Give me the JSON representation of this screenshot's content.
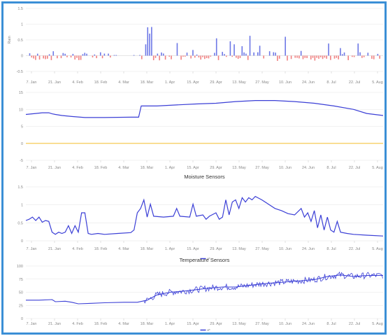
{
  "chart_data": [
    {
      "type": "bar",
      "title": "",
      "ylabel": "Rain",
      "ylim": [
        -0.5,
        1.5
      ],
      "yticks": [
        "1.5",
        "1",
        "0.5",
        "0",
        "-0.5"
      ],
      "xticks": [
        "7. Jan",
        "21. Jan",
        "4. Feb",
        "18. Feb",
        "4. Mar",
        "18. Mar",
        "1. Apr",
        "15. Apr",
        "29. Apr",
        "13. May",
        "27. May",
        "10. Jun",
        "24. Jun",
        "8. Jul",
        "22. Jul",
        "5. Aug"
      ],
      "colors": {
        "positive": "#6d78e6",
        "negative": "#f08080"
      }
    },
    {
      "type": "line",
      "title": "",
      "ylim": [
        -5,
        15
      ],
      "yticks": [
        "15",
        "10",
        "5",
        "0",
        "-5"
      ],
      "xticks": [
        "7. Jan",
        "21. Jan",
        "4. Feb",
        "18. Feb",
        "4. Mar",
        "18. Mar",
        "1. Apr",
        "15. Apr",
        "29. Apr",
        "13. May",
        "27. May",
        "10. Jun",
        "24. Jun",
        "8. Jul",
        "22. Jul",
        "5. Aug"
      ],
      "series": [
        {
          "color": "#3b3fd6",
          "points": [
            [
              0,
              8.5
            ],
            [
              15,
              8.8
            ],
            [
              25,
              9
            ],
            [
              35,
              9
            ],
            [
              40,
              8.7
            ],
            [
              45,
              8.5
            ],
            [
              55,
              8.2
            ],
            [
              70,
              7.9
            ],
            [
              90,
              7.6
            ],
            [
              120,
              7.6
            ],
            [
              160,
              7.7
            ],
            [
              172,
              7.7
            ],
            [
              176,
              11
            ],
            [
              200,
              11
            ],
            [
              230,
              11.3
            ],
            [
              260,
              11.6
            ],
            [
              290,
              11.8
            ],
            [
              320,
              12.3
            ],
            [
              350,
              12.6
            ],
            [
              380,
              12.6
            ],
            [
              410,
              12.3
            ],
            [
              440,
              11.8
            ],
            [
              470,
              11
            ],
            [
              500,
              10
            ],
            [
              520,
              8.8
            ],
            [
              545,
              8.2
            ]
          ]
        },
        {
          "color": "#f5c542",
          "points": [
            [
              0,
              0
            ],
            [
              545,
              0
            ]
          ]
        }
      ]
    },
    {
      "type": "line",
      "title": "Moisture Sensors",
      "ylim": [
        0.25,
        1.5
      ],
      "yticks": [
        "1.5",
        "1",
        "0.5",
        "0"
      ],
      "xticks": [
        "7. Jan",
        "21. Jan",
        "4. Feb",
        "18. Feb",
        "4. Mar",
        "18. Mar",
        "1. Apr",
        "15. Apr",
        "29. Apr",
        "13. May",
        "27. May",
        "10. Jun",
        "24. Jun",
        "8. Jul",
        "22. Jul",
        "5. Aug"
      ],
      "legend": "e*",
      "series": [
        {
          "color": "#3b3fd6",
          "points": [
            [
              0,
              0.72
            ],
            [
              5,
              0.75
            ],
            [
              10,
              0.8
            ],
            [
              15,
              0.72
            ],
            [
              20,
              0.8
            ],
            [
              25,
              0.68
            ],
            [
              30,
              0.72
            ],
            [
              35,
              0.7
            ],
            [
              40,
              0.45
            ],
            [
              45,
              0.4
            ],
            [
              50,
              0.45
            ],
            [
              55,
              0.42
            ],
            [
              60,
              0.45
            ],
            [
              65,
              0.6
            ],
            [
              70,
              0.42
            ],
            [
              75,
              0.6
            ],
            [
              80,
              0.45
            ],
            [
              85,
              0.9
            ],
            [
              90,
              0.9
            ],
            [
              95,
              0.42
            ],
            [
              100,
              0.4
            ],
            [
              110,
              0.42
            ],
            [
              120,
              0.4
            ],
            [
              140,
              0.42
            ],
            [
              160,
              0.44
            ],
            [
              165,
              0.5
            ],
            [
              170,
              0.9
            ],
            [
              175,
              1.0
            ],
            [
              180,
              1.2
            ],
            [
              185,
              0.8
            ],
            [
              190,
              1.1
            ],
            [
              195,
              0.82
            ],
            [
              210,
              0.8
            ],
            [
              225,
              0.82
            ],
            [
              230,
              1.0
            ],
            [
              235,
              0.82
            ],
            [
              250,
              0.8
            ],
            [
              255,
              1.1
            ],
            [
              260,
              0.82
            ],
            [
              270,
              0.85
            ],
            [
              275,
              0.75
            ],
            [
              280,
              0.82
            ],
            [
              290,
              0.9
            ],
            [
              295,
              0.75
            ],
            [
              300,
              0.8
            ],
            [
              305,
              1.2
            ],
            [
              310,
              0.85
            ],
            [
              315,
              1.15
            ],
            [
              320,
              1.2
            ],
            [
              325,
              1.0
            ],
            [
              330,
              1.25
            ],
            [
              335,
              1.15
            ],
            [
              340,
              1.25
            ],
            [
              345,
              1.2
            ],
            [
              350,
              1.28
            ],
            [
              360,
              1.2
            ],
            [
              370,
              1.1
            ],
            [
              380,
              1.0
            ],
            [
              390,
              0.95
            ],
            [
              400,
              0.88
            ],
            [
              410,
              0.85
            ],
            [
              420,
              1.0
            ],
            [
              425,
              0.8
            ],
            [
              430,
              0.9
            ],
            [
              435,
              0.7
            ],
            [
              440,
              0.95
            ],
            [
              445,
              0.55
            ],
            [
              450,
              0.85
            ],
            [
              455,
              0.5
            ],
            [
              460,
              0.8
            ],
            [
              465,
              0.5
            ],
            [
              470,
              0.45
            ],
            [
              475,
              0.7
            ],
            [
              480,
              0.45
            ],
            [
              490,
              0.42
            ],
            [
              500,
              0.4
            ],
            [
              520,
              0.38
            ],
            [
              545,
              0.36
            ]
          ]
        }
      ]
    },
    {
      "type": "line",
      "title": "Temperature Sensors",
      "ylim": [
        0,
        100
      ],
      "yticks": [
        "100",
        "75",
        "50",
        "25",
        "0"
      ],
      "xticks": [
        "7. Jan",
        "21. Jan",
        "4. Feb",
        "18. Feb",
        "4. Mar",
        "18. Mar",
        "1. Apr",
        "15. Apr",
        "29. Apr",
        "13. May",
        "27. May",
        "10. Jun",
        "24. Jun",
        "8. Jul",
        "22. Jul",
        "5. Aug"
      ],
      "legend": "e*",
      "series": [
        {
          "color": "#3b3fd6",
          "points": [
            [
              0,
              35
            ],
            [
              20,
              35
            ],
            [
              40,
              36
            ],
            [
              45,
              32
            ],
            [
              60,
              33
            ],
            [
              70,
              31
            ],
            [
              80,
              28
            ],
            [
              100,
              29
            ],
            [
              120,
              30
            ],
            [
              150,
              31
            ],
            [
              170,
              31
            ],
            [
              185,
              35
            ],
            [
              200,
              45
            ],
            [
              220,
              50
            ],
            [
              240,
              52
            ],
            [
              260,
              55
            ],
            [
              280,
              58
            ],
            [
              300,
              60
            ],
            [
              320,
              60
            ],
            [
              340,
              63
            ],
            [
              360,
              66
            ],
            [
              380,
              68
            ],
            [
              400,
              70
            ],
            [
              420,
              72
            ],
            [
              440,
              74
            ],
            [
              460,
              80
            ],
            [
              480,
              83
            ],
            [
              500,
              80
            ],
            [
              520,
              82
            ],
            [
              545,
              82
            ]
          ]
        }
      ]
    }
  ]
}
